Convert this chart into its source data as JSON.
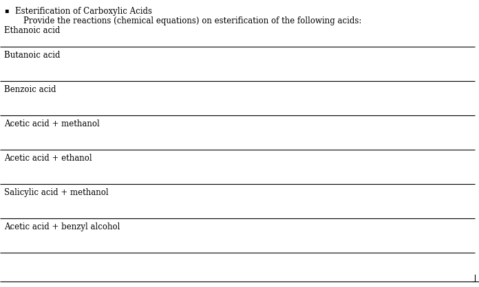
{
  "title_bullet": "▪",
  "title_main": "Esterification of Carboxylic Acids",
  "title_sub": "Provide the reactions (chemical equations) on esterification of the following acids:",
  "title_sub2": "Ethanoic acid",
  "rows": [
    "Butanoic acid",
    "Benzoic acid",
    "Acetic acid + methanol",
    "Acetic acid + ethanol",
    "Salicylic acid + methanol",
    "Acetic acid + benzyl alcohol"
  ],
  "bg_color": "#ffffff",
  "text_color": "#000000",
  "line_color": "#000000",
  "font_family": "serif",
  "title_fontsize": 8.5,
  "row_fontsize": 8.5,
  "fig_width": 6.96,
  "fig_height": 4.18,
  "dpi": 100
}
